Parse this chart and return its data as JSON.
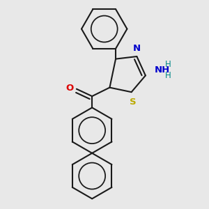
{
  "bg_color": "#e8e8e8",
  "line_color": "#1a1a1a",
  "line_width": 1.5,
  "atom_colors": {
    "O": "#dd0000",
    "N": "#0000cc",
    "S": "#bbaa00",
    "H": "#008888",
    "C": "#1a1a1a"
  },
  "font_size_atom": 9.5,
  "font_size_h": 8.5,
  "xlim": [
    0,
    10
  ],
  "ylim": [
    0,
    10
  ]
}
